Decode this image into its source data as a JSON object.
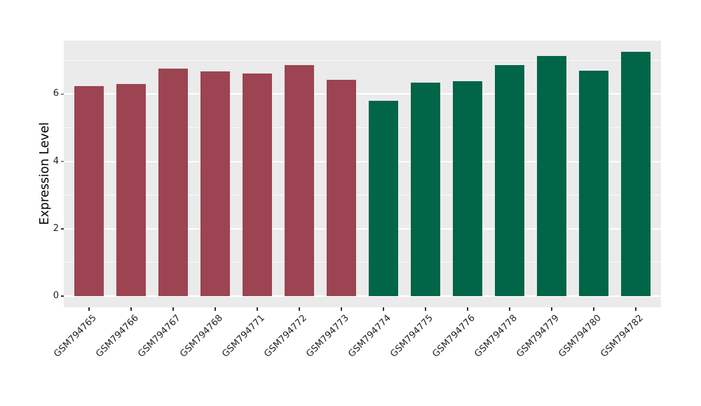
{
  "chart_data": {
    "type": "bar",
    "title": "",
    "xlabel": "",
    "ylabel": "Expression Level",
    "categories": [
      "GSM794765",
      "GSM794766",
      "GSM794767",
      "GSM794768",
      "GSM794771",
      "GSM794772",
      "GSM794773",
      "GSM794774",
      "GSM794775",
      "GSM794776",
      "GSM794778",
      "GSM794779",
      "GSM794780",
      "GSM794782"
    ],
    "values": [
      6.23,
      6.3,
      6.75,
      6.67,
      6.62,
      6.86,
      6.43,
      5.8,
      6.34,
      6.39,
      6.87,
      7.14,
      6.7,
      7.25
    ],
    "bar_colors": [
      "#9C4452",
      "#9C4452",
      "#9C4452",
      "#9C4452",
      "#9C4452",
      "#9C4452",
      "#9C4452",
      "#006647",
      "#006647",
      "#006647",
      "#006647",
      "#006647",
      "#006647",
      "#006647"
    ],
    "group_colors": {
      "left_group": "#9C4452",
      "right_group": "#006647"
    },
    "y_ticks": [
      "0",
      "2",
      "4",
      "6"
    ],
    "y_minor_gridlines": [
      1,
      3,
      5,
      7
    ],
    "ylim": [
      0,
      7.6
    ],
    "grid": "on",
    "legend": "none",
    "panel_background": "#EBEBEB",
    "gridline_color": "#FFFFFF"
  }
}
